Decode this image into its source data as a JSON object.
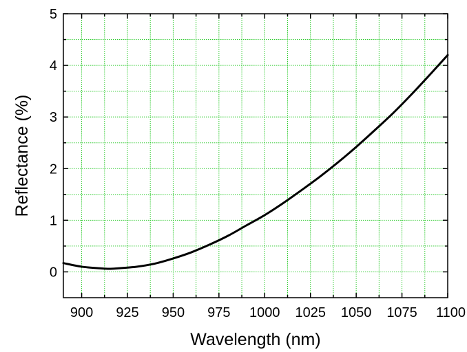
{
  "chart_data": {
    "type": "line",
    "xlabel": "Wavelength (nm)",
    "ylabel": "Reflectance (%)",
    "xlim": [
      890,
      1100
    ],
    "ylim": [
      -0.5,
      5
    ],
    "x_ticks": [
      900,
      925,
      950,
      975,
      1000,
      1025,
      1050,
      1075,
      1100
    ],
    "y_ticks": [
      0,
      1,
      2,
      3,
      4,
      5
    ],
    "x_gridlines": [
      912.5,
      937.5,
      962.5,
      987.5,
      1012.5,
      1037.5,
      1062.5,
      1087.5
    ],
    "y_gridlines": [
      0.5,
      1.5,
      2.5,
      3.5,
      4.5
    ],
    "grid": true,
    "grid_color": "#33cc33",
    "line_color": "#000000",
    "series": [
      {
        "x": [
          890,
          900,
          910,
          915,
          920,
          930,
          940,
          950,
          960,
          970,
          980,
          990,
          1000,
          1010,
          1020,
          1030,
          1040,
          1050,
          1060,
          1070,
          1080,
          1090,
          1100
        ],
        "values": [
          0.17,
          0.1,
          0.07,
          0.06,
          0.07,
          0.1,
          0.16,
          0.26,
          0.38,
          0.53,
          0.7,
          0.9,
          1.1,
          1.33,
          1.58,
          1.84,
          2.12,
          2.42,
          2.74,
          3.07,
          3.43,
          3.81,
          4.2
        ]
      }
    ]
  }
}
